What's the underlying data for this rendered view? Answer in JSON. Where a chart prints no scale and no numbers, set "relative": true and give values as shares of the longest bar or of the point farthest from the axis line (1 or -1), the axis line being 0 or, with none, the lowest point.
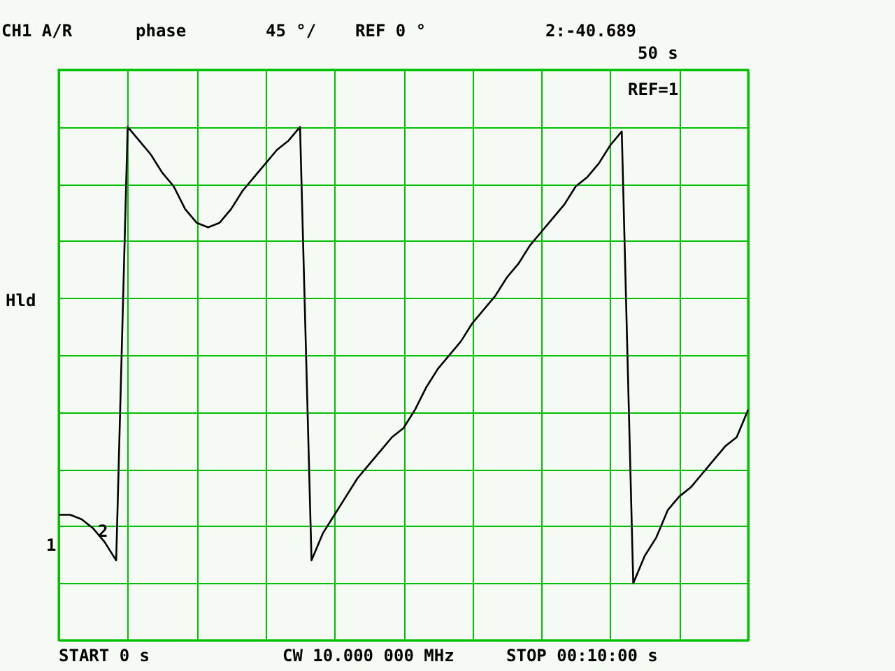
{
  "chart_data": {
    "type": "line",
    "relative": true,
    "grid": true,
    "marker": "none",
    "line_style": "solid",
    "categories": [
      null,
      null,
      null,
      null,
      null,
      null,
      null,
      null,
      null,
      null,
      null,
      null,
      null,
      null,
      null,
      null,
      null,
      null,
      null,
      null,
      null,
      null,
      null,
      null,
      null,
      null,
      null,
      null,
      null,
      null,
      null,
      null,
      null,
      null,
      null,
      null,
      null,
      null,
      null,
      null,
      null,
      null,
      null,
      null,
      null,
      null,
      null,
      null,
      null,
      null,
      null,
      null,
      null,
      null,
      null,
      null,
      null,
      null,
      null,
      null,
      null
    ],
    "series": [
      {
        "color": "#000000",
        "values": [
          0.15,
          0.15,
          0.14,
          0.12,
          0.09,
          0.05,
          1.0,
          0.97,
          0.94,
          0.9,
          0.87,
          0.82,
          0.79,
          0.78,
          0.79,
          0.82,
          0.86,
          0.89,
          0.92,
          0.95,
          0.97,
          1.0,
          0.05,
          0.11,
          0.15,
          0.19,
          0.23,
          0.26,
          0.29,
          0.32,
          0.34,
          0.38,
          0.43,
          0.47,
          0.5,
          0.53,
          0.57,
          0.6,
          0.63,
          0.67,
          0.7,
          0.74,
          0.77,
          0.8,
          0.83,
          0.87,
          0.89,
          0.92,
          0.96,
          0.99,
          0.0,
          0.06,
          0.1,
          0.16,
          0.19,
          0.21,
          0.24,
          0.27,
          0.3,
          0.32,
          0.38
        ]
      }
    ],
    "annotations": [
      "CH1 A/R",
      "phase",
      "45 °/",
      "REF 0 °",
      "2:-40.689",
      "50 s",
      "REF=1",
      "Hld",
      "START 0 s",
      "CW 10.000 000 MHz",
      "STOP 00:10:00 s",
      "1",
      "2"
    ]
  }
}
